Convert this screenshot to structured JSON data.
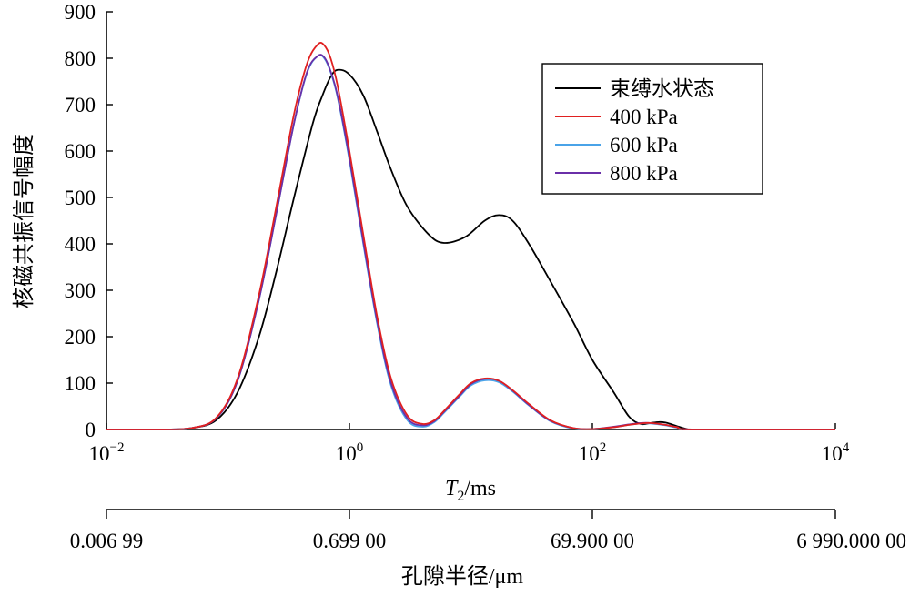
{
  "chart_data": {
    "type": "line",
    "title": "",
    "xscale": "log",
    "xlim": [
      0.01,
      10000
    ],
    "ylim": [
      0,
      900
    ],
    "grid": false,
    "legend_position": "top-right",
    "y_ticks": [
      "0",
      "100",
      "200",
      "300",
      "400",
      "500",
      "600",
      "700",
      "800",
      "900"
    ],
    "x_ticks": [
      {
        "base": "10",
        "exp": "−2",
        "value": 0.01
      },
      {
        "base": "10",
        "exp": "0",
        "value": 1
      },
      {
        "base": "10",
        "exp": "2",
        "value": 100
      },
      {
        "base": "10",
        "exp": "4",
        "value": 10000
      }
    ],
    "x_title_italic": "T",
    "x_title_sub": "2",
    "x_title_unit": "/ms",
    "ylabel": "核磁共振信号幅度",
    "secondary_axis": {
      "label": "孔隙半径/μm",
      "ticks": [
        {
          "label": "0.006 99",
          "t2": 0.01
        },
        {
          "label": "0.699 00",
          "t2": 1
        },
        {
          "label": "69.900 00",
          "t2": 100
        },
        {
          "label": "6 990.000 00",
          "t2": 10000
        }
      ]
    },
    "series": [
      {
        "name": "束缚水状态",
        "color": "#000000",
        "x": [
          0.01,
          0.03,
          0.05,
          0.08,
          0.12,
          0.18,
          0.25,
          0.35,
          0.5,
          0.6,
          0.7,
          0.8,
          1.0,
          1.3,
          1.7,
          2.2,
          3.0,
          4.5,
          6.0,
          9.0,
          13,
          17,
          22,
          30,
          45,
          70,
          100,
          150,
          200,
          250,
          300,
          350,
          400,
          450,
          500,
          600,
          700,
          10000
        ],
        "y": [
          0,
          0,
          3,
          20,
          80,
          200,
          340,
          500,
          660,
          720,
          760,
          775,
          765,
          720,
          640,
          560,
          480,
          420,
          402,
          415,
          450,
          462,
          450,
          400,
          320,
          230,
          150,
          80,
          28,
          12,
          14,
          16,
          15,
          11,
          7,
          1,
          0,
          0
        ]
      },
      {
        "name": "400 kPa",
        "color": "#e02020",
        "x": [
          0.01,
          0.03,
          0.05,
          0.08,
          0.12,
          0.18,
          0.25,
          0.35,
          0.45,
          0.55,
          0.62,
          0.7,
          0.8,
          1.0,
          1.3,
          1.7,
          2.2,
          3.0,
          4.0,
          5.0,
          6.0,
          8.0,
          10,
          13,
          17,
          22,
          30,
          45,
          70,
          100,
          150,
          200,
          250,
          300,
          400,
          500,
          700,
          10000
        ],
        "y": [
          0,
          0,
          3,
          25,
          110,
          290,
          480,
          680,
          790,
          830,
          828,
          800,
          740,
          600,
          420,
          240,
          110,
          30,
          12,
          20,
          40,
          75,
          100,
          110,
          105,
          85,
          55,
          20,
          3,
          1,
          5,
          10,
          13,
          14,
          10,
          5,
          0,
          0
        ]
      },
      {
        "name": "600 kPa",
        "color": "#4aa3e8",
        "x": [
          0.01,
          0.03,
          0.05,
          0.08,
          0.12,
          0.18,
          0.25,
          0.35,
          0.45,
          0.55,
          0.62,
          0.7,
          0.8,
          1.0,
          1.3,
          1.7,
          2.2,
          3.0,
          4.0,
          5.0,
          6.0,
          8.0,
          10,
          13,
          17,
          22,
          30,
          45,
          70,
          100,
          150,
          200,
          250,
          300,
          400,
          500,
          700,
          10000
        ],
        "y": [
          0,
          0,
          3,
          24,
          105,
          280,
          465,
          660,
          770,
          805,
          800,
          770,
          715,
          580,
          400,
          225,
          95,
          20,
          6,
          16,
          36,
          70,
          95,
          106,
          102,
          82,
          52,
          18,
          2,
          1,
          5,
          10,
          13,
          13,
          9,
          4,
          0,
          0
        ]
      },
      {
        "name": "800 kPa",
        "color": "#6a2fa8",
        "x": [
          0.01,
          0.03,
          0.05,
          0.08,
          0.12,
          0.18,
          0.25,
          0.35,
          0.45,
          0.55,
          0.62,
          0.7,
          0.8,
          1.0,
          1.3,
          1.7,
          2.2,
          3.0,
          4.0,
          5.0,
          6.0,
          8.0,
          10,
          13,
          17,
          22,
          30,
          45,
          70,
          100,
          150,
          200,
          250,
          300,
          400,
          500,
          700,
          10000
        ],
        "y": [
          0,
          0,
          3,
          24,
          105,
          280,
          465,
          660,
          772,
          805,
          802,
          772,
          718,
          585,
          405,
          230,
          100,
          24,
          9,
          18,
          38,
          72,
          98,
          109,
          105,
          84,
          53,
          19,
          3,
          1,
          6,
          11,
          14,
          14,
          10,
          5,
          0,
          0
        ]
      }
    ]
  }
}
